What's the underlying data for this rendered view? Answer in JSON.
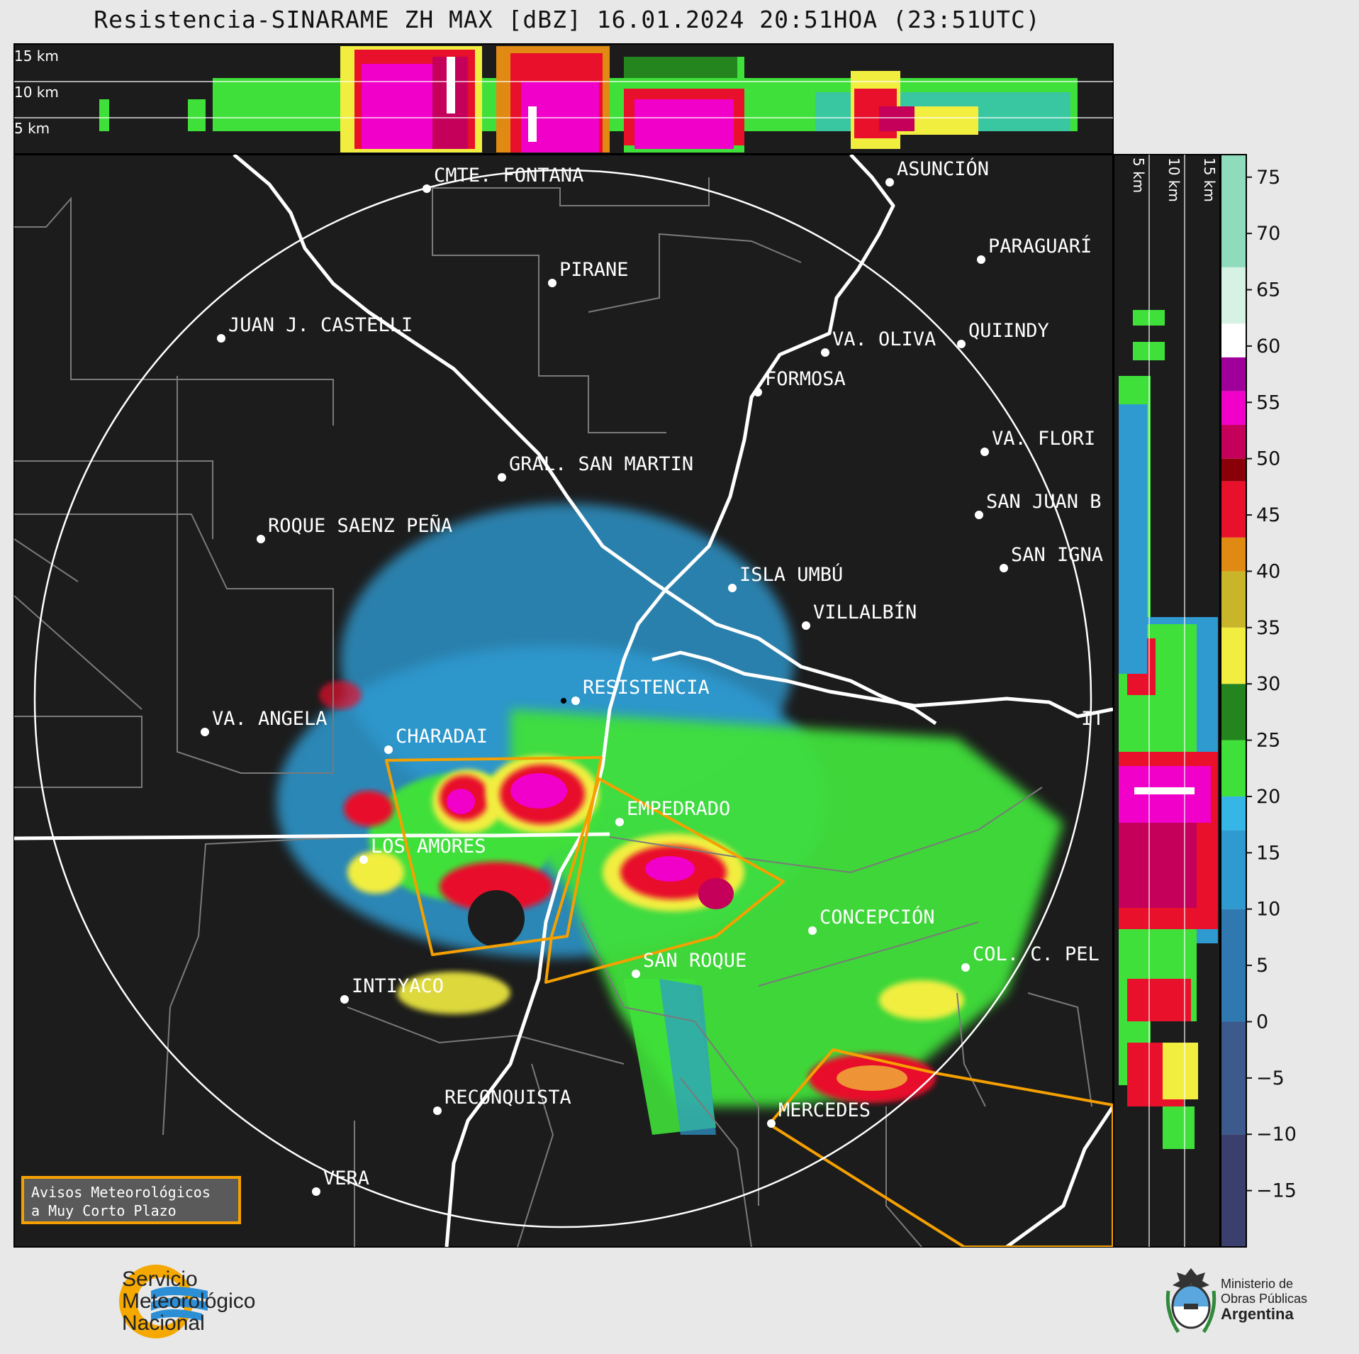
{
  "title": "Resistencia-SINARAME ZH MAX [dBZ] 16.01.2024 20:51HOA (23:51UTC)",
  "top_panel": {
    "height_labels": [
      "15 km",
      "10 km",
      "5 km"
    ]
  },
  "side_panel": {
    "height_labels": [
      "5 km",
      "10 km",
      "15 km"
    ]
  },
  "colorbar": {
    "unit": "dBZ",
    "tick_labels": [
      "75",
      "70",
      "65",
      "60",
      "55",
      "50",
      "45",
      "40",
      "35",
      "30",
      "25",
      "20",
      "15",
      "10",
      "5",
      "0",
      "−5",
      "−10",
      "−15"
    ],
    "range": [
      -20,
      77
    ],
    "colors": [
      {
        "from": -20,
        "to": -10,
        "color": "#3a3f6e"
      },
      {
        "from": -10,
        "to": 0,
        "color": "#3c5a8c"
      },
      {
        "from": 0,
        "to": 10,
        "color": "#2f78b0"
      },
      {
        "from": 10,
        "to": 17,
        "color": "#2e9ad0"
      },
      {
        "from": 17,
        "to": 20,
        "color": "#35b6e6"
      },
      {
        "from": 20,
        "to": 25,
        "color": "#3fe03a"
      },
      {
        "from": 25,
        "to": 30,
        "color": "#24851e"
      },
      {
        "from": 30,
        "to": 35,
        "color": "#f2ee40"
      },
      {
        "from": 35,
        "to": 40,
        "color": "#c9b52a"
      },
      {
        "from": 40,
        "to": 43,
        "color": "#e08a14"
      },
      {
        "from": 43,
        "to": 48,
        "color": "#e8102a"
      },
      {
        "from": 48,
        "to": 50,
        "color": "#8a0008"
      },
      {
        "from": 50,
        "to": 53,
        "color": "#c4005a"
      },
      {
        "from": 53,
        "to": 56,
        "color": "#f000c8"
      },
      {
        "from": 56,
        "to": 59,
        "color": "#a0009a"
      },
      {
        "from": 59,
        "to": 62,
        "color": "#ffffff"
      },
      {
        "from": 62,
        "to": 67,
        "color": "#d6f2e4"
      },
      {
        "from": 67,
        "to": 77,
        "color": "#8fdcbc"
      }
    ]
  },
  "cities": [
    {
      "name": "CMTE. FONTANA"
    },
    {
      "name": "PIRANE"
    },
    {
      "name": "JUAN J. CASTELLI"
    },
    {
      "name": "ASUNCIÓN"
    },
    {
      "name": "PARAGUARÍ"
    },
    {
      "name": "VA. OLIVA"
    },
    {
      "name": "QUIINDY"
    },
    {
      "name": "FORMOSA"
    },
    {
      "name": "VA. FLORI"
    },
    {
      "name": "GRAL. SAN MARTIN"
    },
    {
      "name": "SAN JUAN B"
    },
    {
      "name": "ROQUE SAENZ PEÑA"
    },
    {
      "name": "SAN IGNA"
    },
    {
      "name": "ISLA UMBÚ"
    },
    {
      "name": "VILLALBÍN"
    },
    {
      "name": "RESISTENCIA"
    },
    {
      "name": "VA. ANGELA"
    },
    {
      "name": "CHARADAI"
    },
    {
      "name": "IT"
    },
    {
      "name": "EMPEDRADO"
    },
    {
      "name": "LOS AMORES"
    },
    {
      "name": "CONCEPCIÓN"
    },
    {
      "name": "SAN ROQUE"
    },
    {
      "name": "COL. C. PEL"
    },
    {
      "name": "INTIYACO"
    },
    {
      "name": "RECONQUISTA"
    },
    {
      "name": "MERCEDES"
    },
    {
      "name": "VERA"
    }
  ],
  "legend_box": {
    "line1": "Avisos Meteorológicos",
    "line2": "a Muy Corto Plazo"
  },
  "footer": {
    "smn": [
      "Servicio",
      "Meteorológico",
      "Nacional"
    ],
    "ministry": [
      "Ministerio de",
      "Obras Públicas",
      "Argentina"
    ]
  },
  "colors": {
    "map_background": "#1c1c1c",
    "page_background": "#e8e8e8",
    "warning_outline": "#f5a000",
    "river": "#ffffff",
    "borders": "#7a7a7a"
  }
}
